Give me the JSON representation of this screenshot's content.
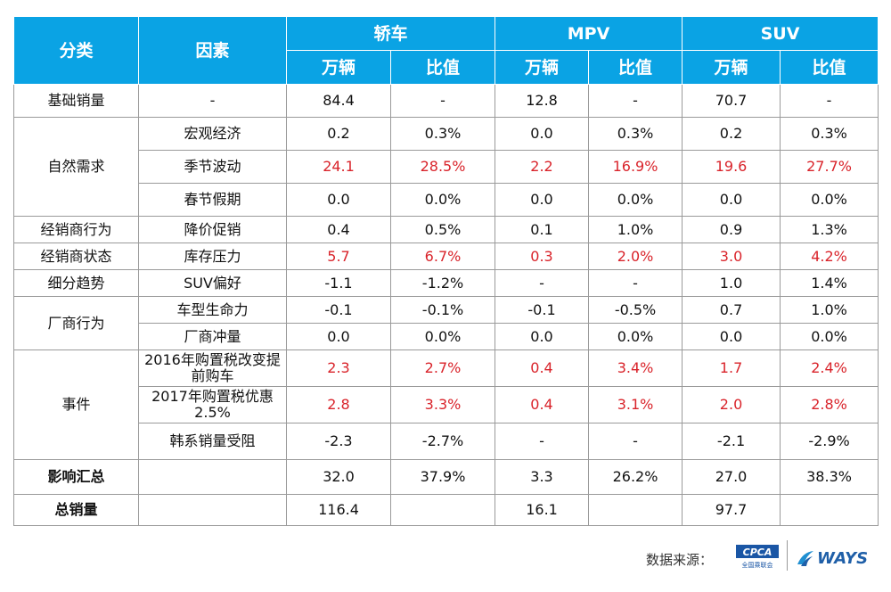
{
  "headers": {
    "category": "分类",
    "factor": "因素",
    "groups": [
      "轿车",
      "MPV",
      "SUV"
    ],
    "sub": [
      "万辆",
      "比值",
      "万辆",
      "比值",
      "万辆",
      "比值"
    ]
  },
  "rows": [
    {
      "cat": "基础销量",
      "factor": "-",
      "vals": [
        "84.4",
        "-",
        "12.8",
        "-",
        "70.7",
        "-"
      ]
    },
    {
      "cat": "自然需求",
      "factor": "宏观经济",
      "vals": [
        "0.2",
        "0.3%",
        "0.0",
        "0.3%",
        "0.2",
        "0.3%"
      ]
    },
    {
      "factor": "季节波动",
      "vals": [
        "24.1",
        "28.5%",
        "2.2",
        "16.9%",
        "19.6",
        "27.7%"
      ]
    },
    {
      "factor": "春节假期",
      "vals": [
        "0.0",
        "0.0%",
        "0.0",
        "0.0%",
        "0.0",
        "0.0%"
      ]
    },
    {
      "cat": "经销商行为",
      "factor": "降价促销",
      "vals": [
        "0.4",
        "0.5%",
        "0.1",
        "1.0%",
        "0.9",
        "1.3%"
      ]
    },
    {
      "cat": "经销商状态",
      "factor": "库存压力",
      "vals": [
        "5.7",
        "6.7%",
        "0.3",
        "2.0%",
        "3.0",
        "4.2%"
      ]
    },
    {
      "cat": "细分趋势",
      "factor": "SUV偏好",
      "vals": [
        "-1.1",
        "-1.2%",
        "-",
        "-",
        "1.0",
        "1.4%"
      ]
    },
    {
      "cat": "厂商行为",
      "factor": "车型生命力",
      "vals": [
        "-0.1",
        "-0.1%",
        "-0.1",
        "-0.5%",
        "0.7",
        "1.0%"
      ]
    },
    {
      "factor": "厂商冲量",
      "vals": [
        "0.0",
        "0.0%",
        "0.0",
        "0.0%",
        "0.0",
        "0.0%"
      ]
    },
    {
      "cat": "事件",
      "factor": "2016年购置税改变提前购车",
      "vals": [
        "2.3",
        "2.7%",
        "0.4",
        "3.4%",
        "1.7",
        "2.4%"
      ]
    },
    {
      "factor": "2017年购置税优惠2.5%",
      "vals": [
        "2.8",
        "3.3%",
        "0.4",
        "3.1%",
        "2.0",
        "2.8%"
      ]
    },
    {
      "factor": "韩系销量受阻",
      "vals": [
        "-2.3",
        "-2.7%",
        "-",
        "-",
        "-2.1",
        "-2.9%"
      ]
    },
    {
      "cat": "影响汇总",
      "factor": "",
      "vals": [
        "32.0",
        "37.9%",
        "3.3",
        "26.2%",
        "27.0",
        "38.3%"
      ]
    },
    {
      "cat": "总销量",
      "factor": "",
      "vals": [
        "116.4",
        "",
        "16.1",
        "",
        "97.7",
        ""
      ]
    }
  ],
  "highlight_color": "#d9232a",
  "header_color": "#0aa3e4",
  "footer": {
    "source_label": "数据来源：",
    "logo_cpca": "CPCA",
    "logo_cpca_sub": "全国乘联会",
    "logo_ways": "WAYS"
  }
}
